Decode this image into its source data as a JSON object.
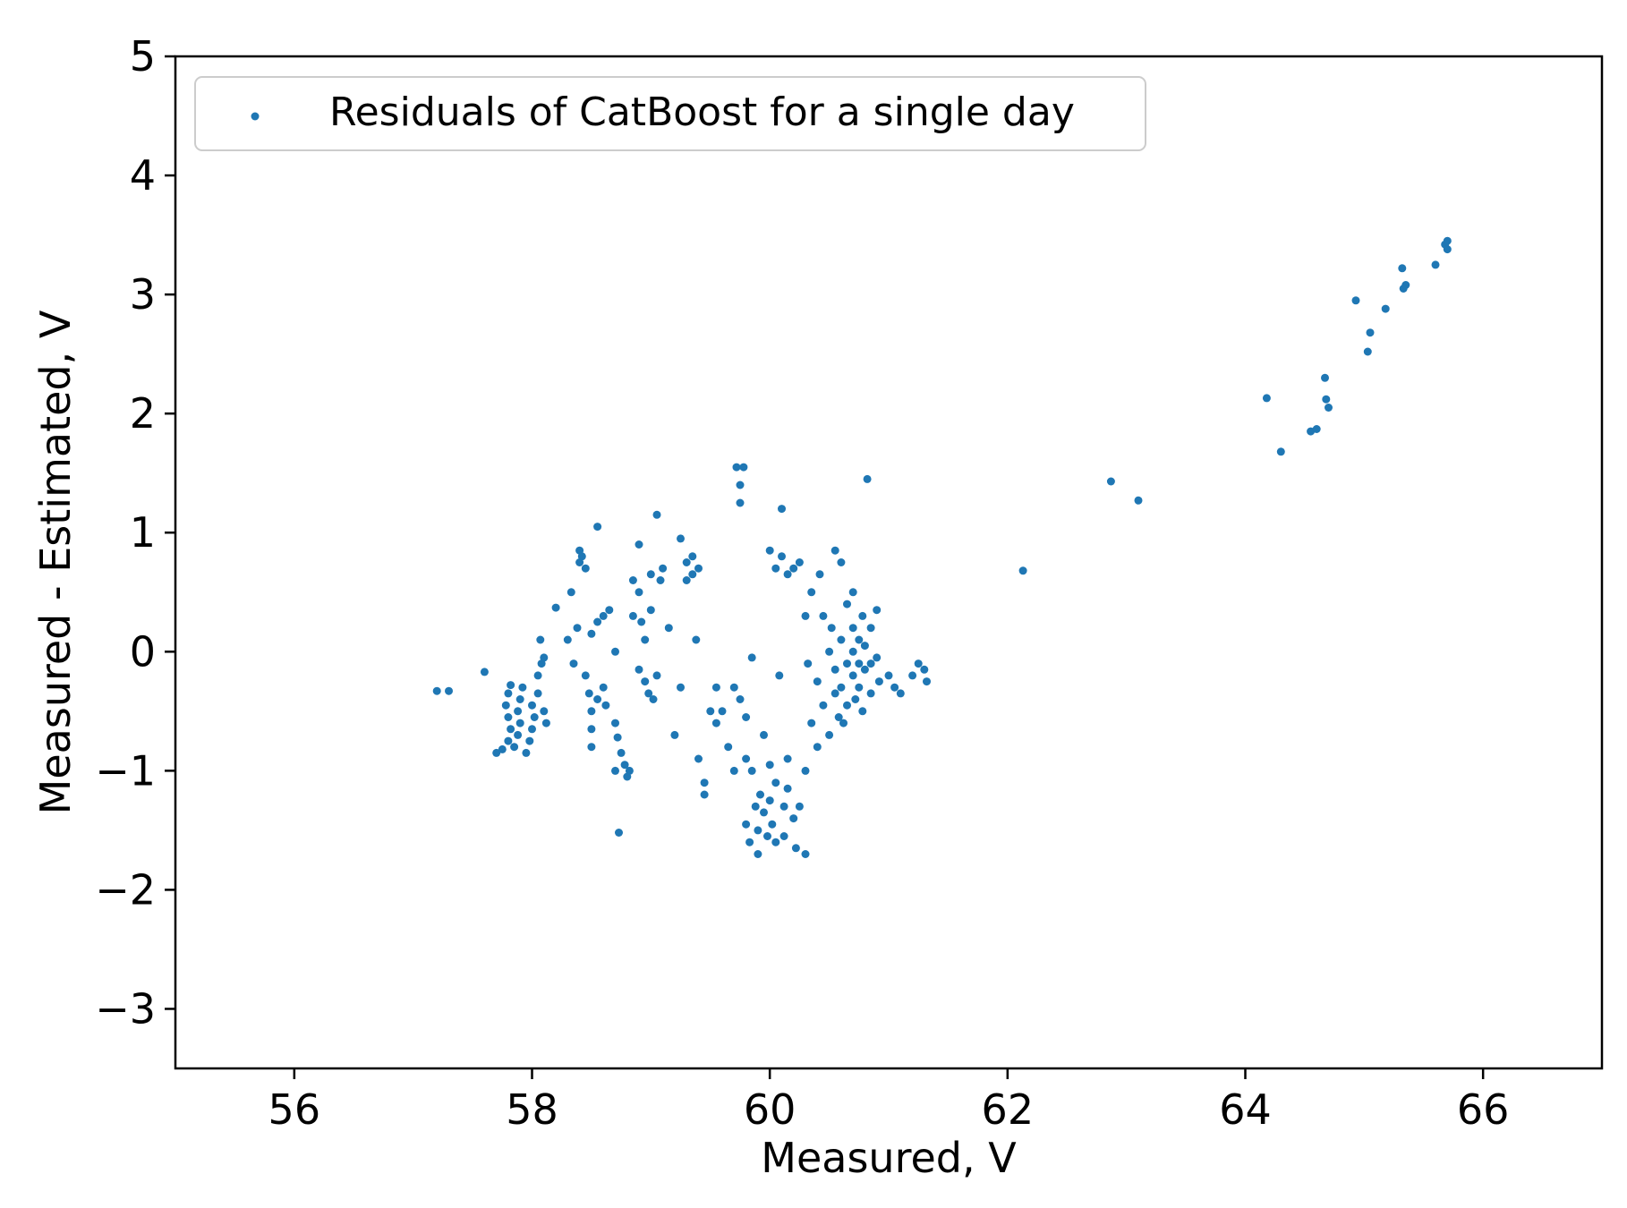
{
  "chart_data": {
    "type": "scatter",
    "xlabel": "Measured, V",
    "ylabel": "Measured - Estimated, V",
    "xlim": [
      55,
      67
    ],
    "ylim": [
      -3.5,
      5
    ],
    "x_ticks": [
      56,
      58,
      60,
      62,
      64,
      66
    ],
    "y_ticks": [
      -3,
      -2,
      -1,
      0,
      1,
      2,
      3,
      4,
      5
    ],
    "x_tick_labels": [
      "56",
      "58",
      "60",
      "62",
      "64",
      "66"
    ],
    "y_tick_labels": [
      "−3",
      "−2",
      "−1",
      "0",
      "1",
      "2",
      "3",
      "4",
      "5"
    ],
    "grid": false,
    "legend_position": "top-left",
    "series": [
      {
        "name": "Residuals of CatBoost for a single day",
        "color": "#1f77b4",
        "points": [
          [
            57.2,
            -0.33
          ],
          [
            57.3,
            -0.33
          ],
          [
            57.6,
            -0.17
          ],
          [
            57.7,
            -0.85
          ],
          [
            57.75,
            -0.82
          ],
          [
            57.8,
            -0.75
          ],
          [
            57.82,
            -0.65
          ],
          [
            57.8,
            -0.55
          ],
          [
            57.78,
            -0.45
          ],
          [
            57.8,
            -0.35
          ],
          [
            57.82,
            -0.28
          ],
          [
            57.85,
            -0.8
          ],
          [
            57.88,
            -0.7
          ],
          [
            57.9,
            -0.6
          ],
          [
            57.88,
            -0.5
          ],
          [
            57.9,
            -0.4
          ],
          [
            57.92,
            -0.3
          ],
          [
            57.95,
            -0.85
          ],
          [
            57.98,
            -0.75
          ],
          [
            58.0,
            -0.65
          ],
          [
            58.02,
            -0.55
          ],
          [
            58.0,
            -0.45
          ],
          [
            58.05,
            -0.35
          ],
          [
            58.05,
            -0.2
          ],
          [
            58.08,
            -0.1
          ],
          [
            58.1,
            -0.05
          ],
          [
            58.12,
            -0.6
          ],
          [
            58.1,
            -0.5
          ],
          [
            58.07,
            0.1
          ],
          [
            58.2,
            0.37
          ],
          [
            58.3,
            0.1
          ],
          [
            58.35,
            -0.1
          ],
          [
            58.33,
            0.5
          ],
          [
            58.4,
            0.85
          ],
          [
            58.42,
            0.8
          ],
          [
            58.4,
            0.75
          ],
          [
            58.45,
            0.7
          ],
          [
            58.38,
            0.2
          ],
          [
            58.45,
            -0.2
          ],
          [
            58.48,
            -0.35
          ],
          [
            58.5,
            -0.5
          ],
          [
            58.5,
            -0.65
          ],
          [
            58.5,
            -0.8
          ],
          [
            58.55,
            -0.4
          ],
          [
            58.55,
            1.05
          ],
          [
            58.5,
            0.15
          ],
          [
            58.55,
            0.25
          ],
          [
            58.6,
            0.3
          ],
          [
            58.6,
            -0.3
          ],
          [
            58.65,
            0.35
          ],
          [
            58.62,
            -0.45
          ],
          [
            58.7,
            0.0
          ],
          [
            58.7,
            -0.6
          ],
          [
            58.72,
            -0.72
          ],
          [
            58.7,
            -1.0
          ],
          [
            58.75,
            -0.85
          ],
          [
            58.78,
            -0.95
          ],
          [
            58.8,
            -1.05
          ],
          [
            58.73,
            -1.52
          ],
          [
            58.82,
            -1.0
          ],
          [
            58.85,
            0.6
          ],
          [
            58.85,
            0.3
          ],
          [
            58.9,
            0.9
          ],
          [
            58.9,
            0.5
          ],
          [
            58.9,
            -0.15
          ],
          [
            58.92,
            0.25
          ],
          [
            58.95,
            0.1
          ],
          [
            58.95,
            -0.25
          ],
          [
            58.98,
            -0.35
          ],
          [
            59.0,
            0.65
          ],
          [
            59.0,
            0.35
          ],
          [
            59.02,
            -0.4
          ],
          [
            59.05,
            1.15
          ],
          [
            59.08,
            0.6
          ],
          [
            59.05,
            -0.2
          ],
          [
            59.1,
            0.7
          ],
          [
            59.15,
            0.2
          ],
          [
            59.2,
            -0.7
          ],
          [
            59.25,
            -0.3
          ],
          [
            59.25,
            0.95
          ],
          [
            59.3,
            0.75
          ],
          [
            59.3,
            0.6
          ],
          [
            59.35,
            0.8
          ],
          [
            59.35,
            0.65
          ],
          [
            59.4,
            0.7
          ],
          [
            59.38,
            0.1
          ],
          [
            59.4,
            -0.9
          ],
          [
            59.45,
            -1.1
          ],
          [
            59.45,
            -1.2
          ],
          [
            59.5,
            -0.5
          ],
          [
            59.55,
            -0.6
          ],
          [
            59.55,
            -0.3
          ],
          [
            59.6,
            -0.5
          ],
          [
            59.65,
            -0.8
          ],
          [
            59.7,
            -1.0
          ],
          [
            59.7,
            -0.3
          ],
          [
            59.72,
            1.55
          ],
          [
            59.75,
            1.4
          ],
          [
            59.75,
            1.25
          ],
          [
            59.78,
            1.55
          ],
          [
            59.75,
            -0.4
          ],
          [
            59.8,
            -0.55
          ],
          [
            59.8,
            -0.9
          ],
          [
            59.8,
            -1.45
          ],
          [
            59.83,
            -1.6
          ],
          [
            59.85,
            -0.05
          ],
          [
            59.85,
            -1.0
          ],
          [
            59.88,
            -1.3
          ],
          [
            59.9,
            -1.5
          ],
          [
            59.9,
            -1.7
          ],
          [
            59.92,
            -1.2
          ],
          [
            59.95,
            -0.7
          ],
          [
            59.95,
            -1.35
          ],
          [
            59.98,
            -1.55
          ],
          [
            60.0,
            0.85
          ],
          [
            60.0,
            -0.95
          ],
          [
            60.0,
            -1.25
          ],
          [
            60.02,
            -1.45
          ],
          [
            60.05,
            0.7
          ],
          [
            60.05,
            -1.1
          ],
          [
            60.05,
            -1.6
          ],
          [
            60.08,
            -0.2
          ],
          [
            60.1,
            1.2
          ],
          [
            60.1,
            0.8
          ],
          [
            60.12,
            -1.3
          ],
          [
            60.12,
            -1.55
          ],
          [
            60.15,
            0.65
          ],
          [
            60.15,
            -1.15
          ],
          [
            60.15,
            -0.9
          ],
          [
            60.2,
            0.7
          ],
          [
            60.2,
            -1.4
          ],
          [
            60.22,
            -1.65
          ],
          [
            60.25,
            0.75
          ],
          [
            60.25,
            -1.3
          ],
          [
            60.3,
            -1.7
          ],
          [
            60.3,
            0.3
          ],
          [
            60.3,
            -1.0
          ],
          [
            60.32,
            -0.1
          ],
          [
            60.35,
            -0.6
          ],
          [
            60.35,
            0.5
          ],
          [
            60.4,
            -0.25
          ],
          [
            60.4,
            -0.8
          ],
          [
            60.42,
            0.65
          ],
          [
            60.45,
            0.3
          ],
          [
            60.45,
            -0.45
          ],
          [
            60.5,
            0.0
          ],
          [
            60.5,
            -0.7
          ],
          [
            60.52,
            0.2
          ],
          [
            60.55,
            0.85
          ],
          [
            60.55,
            -0.35
          ],
          [
            60.55,
            -0.15
          ],
          [
            60.58,
            -0.55
          ],
          [
            60.6,
            0.75
          ],
          [
            60.6,
            0.1
          ],
          [
            60.6,
            -0.3
          ],
          [
            60.62,
            -0.6
          ],
          [
            60.65,
            0.4
          ],
          [
            60.65,
            -0.1
          ],
          [
            60.65,
            -0.45
          ],
          [
            60.7,
            0.5
          ],
          [
            60.7,
            0.2
          ],
          [
            60.7,
            0.0
          ],
          [
            60.7,
            -0.2
          ],
          [
            60.72,
            -0.4
          ],
          [
            60.75,
            -0.1
          ],
          [
            60.75,
            0.1
          ],
          [
            60.75,
            -0.3
          ],
          [
            60.78,
            0.3
          ],
          [
            60.78,
            -0.5
          ],
          [
            60.8,
            0.05
          ],
          [
            60.8,
            -0.15
          ],
          [
            60.82,
            1.45
          ],
          [
            60.85,
            0.2
          ],
          [
            60.85,
            -0.1
          ],
          [
            60.85,
            -0.35
          ],
          [
            60.9,
            0.35
          ],
          [
            60.9,
            -0.05
          ],
          [
            60.92,
            -0.25
          ],
          [
            61.0,
            -0.2
          ],
          [
            61.05,
            -0.3
          ],
          [
            61.1,
            -0.35
          ],
          [
            61.2,
            -0.2
          ],
          [
            61.25,
            -0.1
          ],
          [
            61.3,
            -0.15
          ],
          [
            61.32,
            -0.25
          ],
          [
            62.13,
            0.68
          ],
          [
            62.87,
            1.43
          ],
          [
            63.1,
            1.27
          ],
          [
            64.18,
            2.13
          ],
          [
            64.3,
            1.68
          ],
          [
            64.55,
            1.85
          ],
          [
            64.6,
            1.87
          ],
          [
            64.67,
            2.3
          ],
          [
            64.68,
            2.12
          ],
          [
            64.7,
            2.05
          ],
          [
            64.93,
            2.95
          ],
          [
            65.03,
            2.52
          ],
          [
            65.05,
            2.68
          ],
          [
            65.18,
            2.88
          ],
          [
            65.32,
            3.22
          ],
          [
            65.33,
            3.05
          ],
          [
            65.35,
            3.08
          ],
          [
            65.6,
            3.25
          ],
          [
            65.68,
            3.42
          ],
          [
            65.7,
            3.38
          ],
          [
            65.7,
            3.45
          ]
        ]
      }
    ]
  }
}
